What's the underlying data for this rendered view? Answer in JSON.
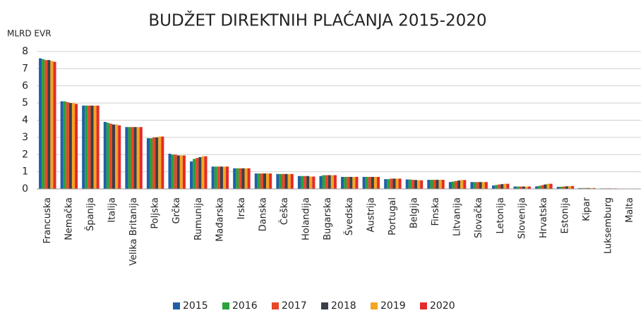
{
  "chart_data": {
    "type": "bar",
    "title": "BUDŽET DIREKTNIH PLAĆANJA 2015-2020",
    "y_label": "MLRD EVR",
    "categories": [
      "Francuska",
      "Nemačka",
      "Španija",
      "Italija",
      "Velika Britanija",
      "Poljska",
      "Grčka",
      "Rumunija",
      "Mađarska",
      "Irska",
      "Danska",
      "Češka",
      "Holandija",
      "Bugarska",
      "Švedska",
      "Austrija",
      "Portugal",
      "Belgija",
      "Finska",
      "Litvanija",
      "Slovačka",
      "Letonija",
      "Slovenija",
      "Hrvatska",
      "Estonija",
      "Kipar",
      "Luksemburg",
      "Malta"
    ],
    "series": [
      {
        "name": "2015",
        "color": "#1f5fa8",
        "values": [
          7.6,
          5.1,
          4.85,
          3.9,
          3.6,
          2.95,
          2.05,
          1.6,
          1.3,
          1.2,
          0.9,
          0.87,
          0.75,
          0.75,
          0.7,
          0.7,
          0.57,
          0.55,
          0.53,
          0.4,
          0.4,
          0.2,
          0.14,
          0.15,
          0.12,
          0.05,
          0.03,
          0.005
        ]
      },
      {
        "name": "2016",
        "color": "#2aa13b",
        "values": [
          7.55,
          5.1,
          4.85,
          3.85,
          3.6,
          2.95,
          2.0,
          1.75,
          1.3,
          1.2,
          0.9,
          0.87,
          0.75,
          0.8,
          0.7,
          0.7,
          0.57,
          0.55,
          0.53,
          0.43,
          0.4,
          0.23,
          0.14,
          0.18,
          0.13,
          0.05,
          0.03,
          0.005
        ]
      },
      {
        "name": "2017",
        "color": "#e8472a",
        "values": [
          7.5,
          5.05,
          4.85,
          3.8,
          3.6,
          3.0,
          2.0,
          1.8,
          1.3,
          1.2,
          0.9,
          0.87,
          0.75,
          0.8,
          0.7,
          0.7,
          0.6,
          0.53,
          0.53,
          0.46,
          0.4,
          0.26,
          0.14,
          0.22,
          0.14,
          0.05,
          0.03,
          0.005
        ]
      },
      {
        "name": "2018",
        "color": "#3a3f4a",
        "values": [
          7.5,
          5.0,
          4.85,
          3.75,
          3.6,
          3.0,
          1.95,
          1.85,
          1.3,
          1.2,
          0.9,
          0.87,
          0.75,
          0.8,
          0.7,
          0.7,
          0.6,
          0.52,
          0.53,
          0.49,
          0.4,
          0.28,
          0.14,
          0.26,
          0.15,
          0.05,
          0.03,
          0.005
        ]
      },
      {
        "name": "2019",
        "color": "#f4a521",
        "values": [
          7.45,
          5.0,
          4.85,
          3.75,
          3.6,
          3.05,
          1.95,
          1.9,
          1.3,
          1.2,
          0.9,
          0.87,
          0.72,
          0.8,
          0.7,
          0.7,
          0.6,
          0.51,
          0.53,
          0.52,
          0.4,
          0.3,
          0.14,
          0.3,
          0.16,
          0.05,
          0.03,
          0.005
        ]
      },
      {
        "name": "2020",
        "color": "#e32b2b",
        "values": [
          7.4,
          4.95,
          4.85,
          3.7,
          3.6,
          3.05,
          1.95,
          1.9,
          1.3,
          1.2,
          0.9,
          0.87,
          0.72,
          0.8,
          0.7,
          0.7,
          0.6,
          0.5,
          0.53,
          0.52,
          0.4,
          0.3,
          0.14,
          0.3,
          0.17,
          0.05,
          0.03,
          0.005
        ]
      }
    ],
    "ylim": [
      0,
      8
    ],
    "yticks": [
      0,
      1,
      2,
      3,
      4,
      5,
      6,
      7,
      8
    ],
    "grid": true,
    "legend": "bottom"
  }
}
